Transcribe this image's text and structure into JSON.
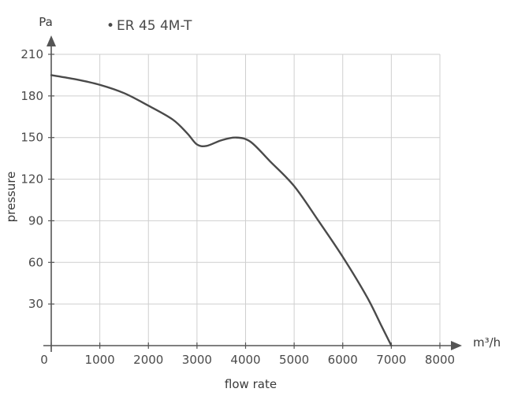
{
  "chart_data": {
    "type": "line",
    "title": "",
    "xlabel": "flow rate",
    "ylabel": "pressure",
    "x_unit": "m³/h",
    "y_unit": "Pa",
    "xlim": [
      0,
      8000
    ],
    "ylim": [
      0,
      210
    ],
    "x_ticks": [
      0,
      1000,
      2000,
      3000,
      4000,
      5000,
      6000,
      7000,
      8000
    ],
    "y_ticks": [
      30,
      60,
      90,
      120,
      150,
      180,
      210
    ],
    "grid": true,
    "legend": {
      "placement": "top-left",
      "marker": "•"
    },
    "series": [
      {
        "name": "ER 45 4M-T",
        "color": "#4a4a4a",
        "points": [
          [
            0,
            195
          ],
          [
            500,
            192
          ],
          [
            1000,
            188
          ],
          [
            1500,
            182
          ],
          [
            2000,
            173
          ],
          [
            2500,
            163
          ],
          [
            2800,
            153
          ],
          [
            3000,
            145
          ],
          [
            3200,
            144
          ],
          [
            3500,
            148
          ],
          [
            3800,
            150
          ],
          [
            4100,
            147
          ],
          [
            4500,
            133
          ],
          [
            5000,
            115
          ],
          [
            5500,
            90
          ],
          [
            6000,
            64
          ],
          [
            6500,
            35
          ],
          [
            6800,
            14
          ],
          [
            7000,
            0
          ]
        ]
      }
    ]
  }
}
